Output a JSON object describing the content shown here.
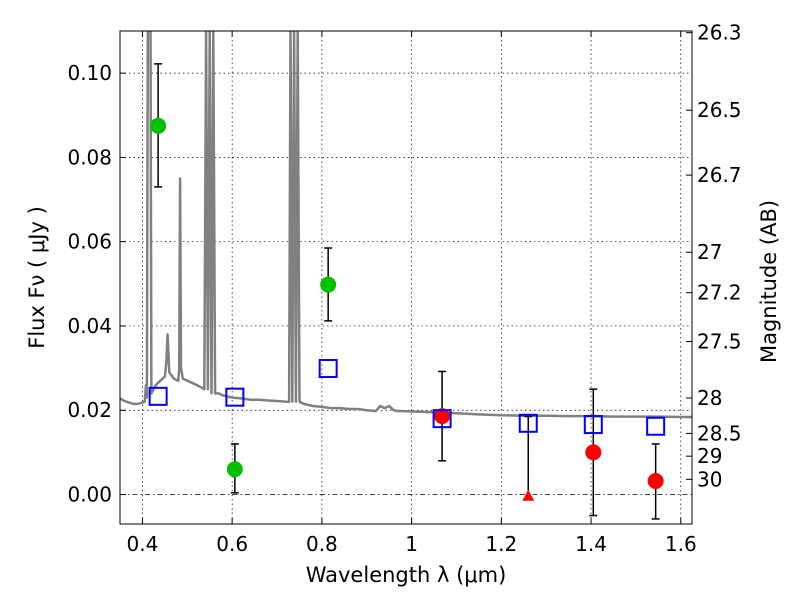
{
  "chart_data": {
    "type": "scatter",
    "xlabel": "Wavelength  λ (μm)",
    "ylabel": "Flux  Fν  ( μJy )",
    "ylabel_right": "Magnitude (AB)",
    "xlim": [
      0.35,
      1.625
    ],
    "ylim": [
      -0.007,
      0.11
    ],
    "x_ticks": [
      0.4,
      0.6,
      0.8,
      1.0,
      1.2,
      1.4,
      1.6
    ],
    "x_tick_labels": [
      "0.4",
      "0.6",
      "0.8",
      "1",
      "1.2",
      "1.4",
      "1.6"
    ],
    "y_ticks": [
      0.0,
      0.02,
      0.04,
      0.06,
      0.08,
      0.1
    ],
    "y_tick_labels": [
      "0.00",
      "0.02",
      "0.04",
      "0.06",
      "0.08",
      "0.10"
    ],
    "right_ticks": [
      {
        "label": "26.3",
        "flux": 0.1096
      },
      {
        "label": "26.5",
        "flux": 0.0912
      },
      {
        "label": "26.7",
        "flux": 0.0758
      },
      {
        "label": "27",
        "flux": 0.0575
      },
      {
        "label": "27.2",
        "flux": 0.0479
      },
      {
        "label": "27.5",
        "flux": 0.0363
      },
      {
        "label": "28",
        "flux": 0.0229
      },
      {
        "label": "28.5",
        "flux": 0.0145
      },
      {
        "label": "29",
        "flux": 0.0091
      },
      {
        "label": "30",
        "flux": 0.0036
      }
    ],
    "grid": true,
    "series": [
      {
        "kind": "model-spectrum",
        "color": "#808080",
        "points": [
          [
            0.35,
            0.0228
          ],
          [
            0.36,
            0.0222
          ],
          [
            0.37,
            0.0218
          ],
          [
            0.38,
            0.0215
          ],
          [
            0.39,
            0.0215
          ],
          [
            0.4,
            0.0218
          ],
          [
            0.405,
            0.022
          ],
          [
            0.408,
            0.026
          ],
          [
            0.41,
            0.023
          ],
          [
            0.412,
            0.11
          ],
          [
            0.418,
            0.11
          ],
          [
            0.42,
            0.024
          ],
          [
            0.43,
            0.026
          ],
          [
            0.44,
            0.027
          ],
          [
            0.45,
            0.028
          ],
          [
            0.453,
            0.031
          ],
          [
            0.456,
            0.038
          ],
          [
            0.459,
            0.031
          ],
          [
            0.46,
            0.029
          ],
          [
            0.47,
            0.0275
          ],
          [
            0.48,
            0.027
          ],
          [
            0.482,
            0.03
          ],
          [
            0.484,
            0.075
          ],
          [
            0.486,
            0.03
          ],
          [
            0.49,
            0.0275
          ],
          [
            0.5,
            0.027
          ],
          [
            0.51,
            0.0265
          ],
          [
            0.52,
            0.026
          ],
          [
            0.53,
            0.0255
          ],
          [
            0.538,
            0.025
          ],
          [
            0.542,
            0.11
          ],
          [
            0.546,
            0.025
          ],
          [
            0.55,
            0.11
          ],
          [
            0.554,
            0.024
          ],
          [
            0.558,
            0.11
          ],
          [
            0.562,
            0.024
          ],
          [
            0.57,
            0.024
          ],
          [
            0.58,
            0.0235
          ],
          [
            0.6,
            0.023
          ],
          [
            0.62,
            0.0228
          ],
          [
            0.64,
            0.0225
          ],
          [
            0.66,
            0.0225
          ],
          [
            0.68,
            0.0223
          ],
          [
            0.7,
            0.0222
          ],
          [
            0.72,
            0.022
          ],
          [
            0.727,
            0.022
          ],
          [
            0.73,
            0.11
          ],
          [
            0.734,
            0.022
          ],
          [
            0.738,
            0.11
          ],
          [
            0.742,
            0.022
          ],
          [
            0.746,
            0.11
          ],
          [
            0.75,
            0.022
          ],
          [
            0.76,
            0.0215
          ],
          [
            0.78,
            0.021
          ],
          [
            0.8,
            0.0208
          ],
          [
            0.82,
            0.0205
          ],
          [
            0.84,
            0.0205
          ],
          [
            0.86,
            0.0203
          ],
          [
            0.88,
            0.0203
          ],
          [
            0.9,
            0.02
          ],
          [
            0.92,
            0.0198
          ],
          [
            0.93,
            0.021
          ],
          [
            0.94,
            0.0205
          ],
          [
            0.95,
            0.021
          ],
          [
            0.96,
            0.02
          ],
          [
            0.97,
            0.0198
          ],
          [
            0.98,
            0.0198
          ],
          [
            1.0,
            0.0197
          ],
          [
            1.05,
            0.0195
          ],
          [
            1.1,
            0.0193
          ],
          [
            1.15,
            0.019
          ],
          [
            1.2,
            0.0188
          ],
          [
            1.25,
            0.0187
          ],
          [
            1.3,
            0.0187
          ],
          [
            1.35,
            0.0186
          ],
          [
            1.4,
            0.0186
          ],
          [
            1.45,
            0.0185
          ],
          [
            1.5,
            0.0185
          ],
          [
            1.55,
            0.0185
          ],
          [
            1.6,
            0.0184
          ],
          [
            1.625,
            0.0184
          ]
        ]
      },
      {
        "kind": "green-detections",
        "color": "#00c000",
        "points": [
          {
            "x": 0.435,
            "y": 0.0875,
            "ylo": 0.073,
            "yhi": 0.1022
          },
          {
            "x": 0.606,
            "y": 0.006,
            "ylo": 0.0004,
            "yhi": 0.012
          },
          {
            "x": 0.814,
            "y": 0.0498,
            "ylo": 0.0412,
            "yhi": 0.0585
          }
        ]
      },
      {
        "kind": "red-detections",
        "color": "#ff0000",
        "points": [
          {
            "x": 1.068,
            "y": 0.0186,
            "ylo": 0.008,
            "yhi": 0.0292
          },
          {
            "x": 1.405,
            "y": 0.01,
            "ylo": -0.005,
            "yhi": 0.025
          },
          {
            "x": 1.544,
            "y": 0.0032,
            "ylo": -0.0058,
            "yhi": 0.012
          }
        ]
      },
      {
        "kind": "red-upper-limit",
        "color": "#ff0000",
        "points": [
          {
            "x": 1.26,
            "y": -0.0003,
            "ylo": -0.0003,
            "yhi": 0.0185
          }
        ]
      },
      {
        "kind": "model-photometry",
        "color": "#0000ff",
        "points": [
          {
            "x": 0.435,
            "y": 0.0233
          },
          {
            "x": 0.606,
            "y": 0.0231
          },
          {
            "x": 0.814,
            "y": 0.0299
          },
          {
            "x": 1.068,
            "y": 0.018
          },
          {
            "x": 1.26,
            "y": 0.0169
          },
          {
            "x": 1.405,
            "y": 0.0166
          },
          {
            "x": 1.544,
            "y": 0.0162
          }
        ]
      }
    ]
  }
}
